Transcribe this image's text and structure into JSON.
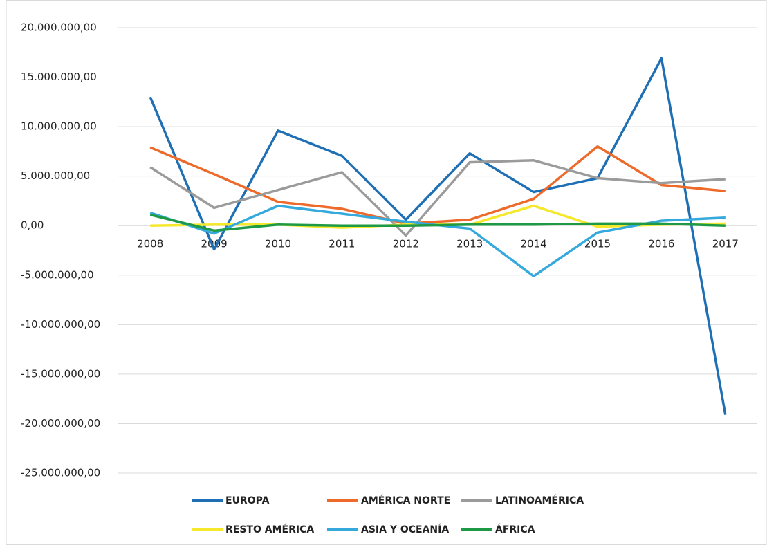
{
  "chart_data": {
    "type": "line",
    "categories": [
      "2008",
      "2009",
      "2010",
      "2011",
      "2012",
      "2013",
      "2014",
      "2015",
      "2016",
      "2017"
    ],
    "series": [
      {
        "name": "EUROPA",
        "color": "#1f6fb5",
        "values": [
          13000000,
          -2400000,
          9600000,
          7050000,
          600000,
          7300000,
          3400000,
          4800000,
          16900000,
          -19100000
        ]
      },
      {
        "name": "AMÉRICA NORTE",
        "color": "#ed6a2b",
        "values": [
          7900000,
          5200000,
          2400000,
          1700000,
          200000,
          600000,
          2700000,
          8000000,
          4100000,
          3500000
        ]
      },
      {
        "name": "LATINOAMÉRICA",
        "color": "#9b9b9b",
        "values": [
          5900000,
          1800000,
          3600000,
          5400000,
          -1000000,
          6400000,
          6600000,
          4800000,
          4300000,
          4700000
        ]
      },
      {
        "name": "RESTO AMÉRICA",
        "color": "#f5e82a",
        "values": [
          0,
          100000,
          100000,
          -200000,
          100000,
          100000,
          2000000,
          -100000,
          100000,
          200000
        ]
      },
      {
        "name": "ASIA Y OCEANÍA",
        "color": "#35a8dc",
        "values": [
          1300000,
          -800000,
          2000000,
          1200000,
          400000,
          -300000,
          -5100000,
          -700000,
          500000,
          800000
        ]
      },
      {
        "name": "ÁFRICA",
        "color": "#1e9a46",
        "values": [
          1100000,
          -500000,
          100000,
          0,
          0,
          100000,
          100000,
          200000,
          200000,
          0
        ]
      }
    ],
    "ylim": [
      -25000000,
      20000000
    ],
    "yticks": [
      {
        "value": -25000000,
        "label": "-25.000.000,00"
      },
      {
        "value": -20000000,
        "label": "-20.000.000,00"
      },
      {
        "value": -15000000,
        "label": "-15.000.000,00"
      },
      {
        "value": -10000000,
        "label": "-10.000.000,00"
      },
      {
        "value": -5000000,
        "label": "-5.000.000,00"
      },
      {
        "value": 0,
        "label": "0,00"
      },
      {
        "value": 5000000,
        "label": "5.000.000,00"
      },
      {
        "value": 10000000,
        "label": "10.000.000,00"
      },
      {
        "value": 15000000,
        "label": "15.000.000,00"
      },
      {
        "value": 20000000,
        "label": "20.000.000,00"
      }
    ],
    "grid": true
  }
}
